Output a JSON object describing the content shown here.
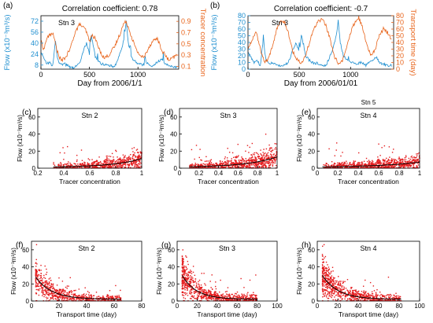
{
  "figure": {
    "width": 550,
    "height": 411
  },
  "chart_data": [
    {
      "id": "a",
      "type": "line",
      "panel_label": "(a)",
      "title": "Correlation coefficient: 0.78",
      "station": "Stn 3",
      "xlabel": "Day from 2006/1/1",
      "ylabel_left": "Flow (x10⁻³m³/s)",
      "ylabel_right": "Tracer concentration",
      "xlim": [
        0,
        1420
      ],
      "xticks": [
        0,
        500,
        1000
      ],
      "ylim_left": [
        2,
        80
      ],
      "yticks_left": [
        8,
        24,
        40,
        56,
        72
      ],
      "ylim_right": [
        0.05,
        1.0
      ],
      "yticks_right": [
        0.1,
        0.3,
        0.5,
        0.7,
        0.9
      ],
      "colors": {
        "left": "#1f8fd0",
        "right": "#e8641b"
      },
      "series": [
        {
          "name": "Flow",
          "axis": "left",
          "color": "#1f8fd0",
          "x": [
            0,
            60,
            90,
            120,
            150,
            170,
            200,
            240,
            300,
            340,
            380,
            410,
            440,
            470,
            500,
            520,
            560,
            620,
            700,
            760,
            800,
            830,
            860,
            880,
            900,
            930,
            980,
            1050,
            1100,
            1150,
            1200,
            1250,
            1280,
            1310,
            1350,
            1400
          ],
          "values": [
            25,
            10,
            12,
            6,
            45,
            18,
            8,
            10,
            5,
            4,
            8,
            15,
            30,
            40,
            24,
            52,
            20,
            10,
            8,
            5,
            20,
            30,
            50,
            72,
            40,
            20,
            12,
            8,
            10,
            6,
            12,
            18,
            10,
            8,
            6,
            4
          ]
        },
        {
          "name": "Tracer concentration",
          "axis": "right",
          "color": "#e8641b",
          "x": [
            0,
            30,
            60,
            90,
            120,
            150,
            180,
            210,
            250,
            300,
            350,
            400,
            430,
            460,
            500,
            530,
            560,
            600,
            650,
            700,
            760,
            820,
            850,
            880,
            900,
            940,
            980,
            1020,
            1060,
            1100,
            1150,
            1200,
            1240,
            1280,
            1320,
            1360,
            1400
          ],
          "values": [
            0.55,
            0.4,
            0.6,
            0.65,
            0.7,
            0.5,
            0.3,
            0.2,
            0.25,
            0.4,
            0.7,
            0.85,
            0.8,
            0.75,
            0.55,
            0.65,
            0.6,
            0.4,
            0.25,
            0.3,
            0.45,
            0.7,
            0.85,
            0.9,
            0.8,
            0.6,
            0.4,
            0.3,
            0.25,
            0.4,
            0.55,
            0.6,
            0.4,
            0.3,
            0.2,
            0.25,
            0.3
          ]
        }
      ]
    },
    {
      "id": "b",
      "type": "line",
      "panel_label": "(b)",
      "title": "Correlation coefficient: -0.7",
      "station": "Stn 3",
      "xlabel": "Day from 2006/01/01",
      "ylabel_left": "Flow (x10⁻³m³/s)",
      "ylabel_right": "Transport time (day)",
      "xlim": [
        0,
        1420
      ],
      "xticks": [
        0,
        500,
        1000
      ],
      "ylim_left": [
        0,
        80
      ],
      "yticks_left": [
        0,
        10,
        20,
        30,
        40,
        50,
        60,
        70,
        80
      ],
      "ylim_right": [
        0,
        80
      ],
      "yticks_right": [
        0,
        10,
        20,
        30,
        40,
        50,
        60,
        70,
        80
      ],
      "colors": {
        "left": "#1f8fd0",
        "right": "#e8641b"
      },
      "series": [
        {
          "name": "Flow",
          "axis": "left",
          "color": "#1f8fd0",
          "x": [
            0,
            60,
            90,
            120,
            150,
            170,
            200,
            240,
            300,
            340,
            380,
            410,
            440,
            470,
            500,
            520,
            560,
            620,
            700,
            760,
            800,
            830,
            860,
            880,
            900,
            930,
            980,
            1050,
            1100,
            1150,
            1200,
            1250,
            1280,
            1310,
            1350,
            1400
          ],
          "values": [
            25,
            10,
            12,
            6,
            45,
            18,
            8,
            10,
            5,
            4,
            8,
            15,
            30,
            40,
            24,
            52,
            20,
            10,
            8,
            5,
            20,
            30,
            50,
            72,
            40,
            20,
            12,
            8,
            10,
            6,
            12,
            18,
            10,
            8,
            6,
            4
          ]
        },
        {
          "name": "Transport time",
          "axis": "right",
          "color": "#e8641b",
          "x": [
            0,
            40,
            80,
            120,
            160,
            200,
            240,
            280,
            320,
            360,
            400,
            440,
            480,
            520,
            560,
            600,
            640,
            680,
            720,
            760,
            800,
            840,
            880,
            920,
            960,
            1000,
            1040,
            1080,
            1120,
            1160,
            1200,
            1240,
            1280,
            1320,
            1360,
            1400
          ],
          "values": [
            30,
            45,
            55,
            30,
            10,
            15,
            35,
            60,
            75,
            70,
            50,
            25,
            15,
            10,
            20,
            40,
            60,
            70,
            75,
            65,
            45,
            20,
            8,
            12,
            30,
            55,
            70,
            78,
            60,
            35,
            20,
            30,
            50,
            60,
            55,
            45
          ]
        }
      ]
    },
    {
      "id": "c",
      "type": "scatter",
      "panel_label": "(c)",
      "station": "Stn 2",
      "xlabel": "Tracer concentration",
      "ylabel": "Flow (x10⁻³m³/s)",
      "xlim": [
        0.2,
        1.0
      ],
      "xticks": [
        0.2,
        0.4,
        0.6,
        0.8,
        1.0
      ],
      "xticklabels": [
        "0.2",
        "0.4",
        "0.6",
        "0.8",
        "1"
      ],
      "ylim": [
        0,
        70
      ],
      "yticks": [
        0,
        20,
        40,
        60
      ],
      "fit_shape": "exponential",
      "fit": {
        "a": 0.3,
        "b": 4.4,
        "x0": 0.32
      },
      "y_max": 66,
      "n_points": 700,
      "point_color": "#e41a1c",
      "seed": 11
    },
    {
      "id": "d",
      "type": "scatter",
      "panel_label": "(d)",
      "station": "Stn 3",
      "xlabel": "Tracer concentration",
      "ylabel": "Flow (x10⁻³m³/s)",
      "xlim": [
        0,
        1.0
      ],
      "xticks": [
        0,
        0.2,
        0.4,
        0.6,
        0.8,
        1.0
      ],
      "xticklabels": [
        "0",
        "0.2",
        "0.4",
        "0.6",
        "0.8",
        "1"
      ],
      "ylim": [
        0,
        70
      ],
      "yticks": [
        0,
        20,
        40,
        60
      ],
      "fit_shape": "exponential",
      "fit": {
        "a": 0.5,
        "b": 3.2,
        "x0": 0.1
      },
      "y_max": 66,
      "n_points": 800,
      "point_color": "#e41a1c",
      "seed": 23
    },
    {
      "id": "e",
      "type": "scatter",
      "panel_label": "(e)",
      "station": "Stn 4",
      "subtitle": "Stn 5",
      "xlabel": "Tracer concentration",
      "ylabel": "Flow (x10⁻³m³/s)",
      "xlim": [
        0,
        1.0
      ],
      "xticks": [
        0,
        0.2,
        0.4,
        0.6,
        0.8,
        1.0
      ],
      "xticklabels": [
        "0",
        "0.2",
        "0.4",
        "0.6",
        "0.8",
        "1"
      ],
      "ylim": [
        0,
        70
      ],
      "yticks": [
        0,
        20,
        40,
        60
      ],
      "fit_shape": "exponential",
      "fit": {
        "a": 0.5,
        "b": 2.5,
        "x0": 0.05
      },
      "y_max": 64,
      "n_points": 800,
      "point_color": "#e41a1c",
      "seed": 37
    },
    {
      "id": "f",
      "type": "scatter",
      "panel_label": "(f)",
      "station": "Stn 2",
      "xlabel": "Transport time (day)",
      "ylabel": "Flow (x10⁻³m³/s)",
      "xlim": [
        0,
        80
      ],
      "xticks": [
        0,
        20,
        40,
        60,
        80
      ],
      "ylim": [
        0,
        70
      ],
      "yticks": [
        0,
        20,
        40,
        60
      ],
      "fit_shape": "decay",
      "fit": {
        "a": 26,
        "k": 0.085,
        "c": 2,
        "x0": 3,
        "x1": 65
      },
      "y_max": 66,
      "n_points": 700,
      "point_color": "#e41a1c",
      "seed": 51
    },
    {
      "id": "g",
      "type": "scatter",
      "panel_label": "(g)",
      "station": "Stn 3",
      "xlabel": "Transport time (day)",
      "ylabel": "Flow (x10⁻³m³/s)",
      "xlim": [
        0,
        100
      ],
      "xticks": [
        0,
        20,
        40,
        60,
        80,
        100
      ],
      "ylim": [
        0,
        70
      ],
      "yticks": [
        0,
        20,
        40,
        60
      ],
      "fit_shape": "decay",
      "fit": {
        "a": 28,
        "k": 0.07,
        "c": 2,
        "x0": 5,
        "x1": 80
      },
      "y_max": 66,
      "n_points": 800,
      "point_color": "#e41a1c",
      "seed": 67
    },
    {
      "id": "h",
      "type": "scatter",
      "panel_label": "(h)",
      "station": "Stn 4",
      "xlabel": "Transport time (day)",
      "ylabel": "Flow (x10⁻³m³/s)",
      "xlim": [
        0,
        100
      ],
      "xticks": [
        0,
        20,
        40,
        60,
        80,
        100
      ],
      "ylim": [
        0,
        70
      ],
      "yticks": [
        0,
        20,
        40,
        60
      ],
      "fit_shape": "decay",
      "fit": {
        "a": 28,
        "k": 0.065,
        "c": 2,
        "x0": 5,
        "x1": 82
      },
      "y_max": 66,
      "n_points": 800,
      "point_color": "#e41a1c",
      "seed": 83
    }
  ]
}
